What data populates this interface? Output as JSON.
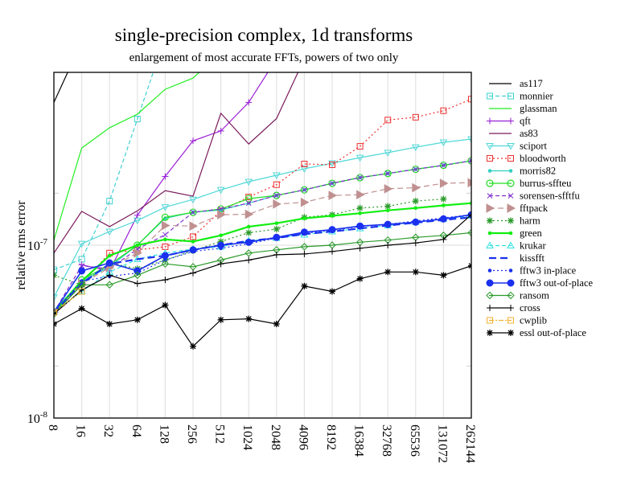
{
  "chart_data": {
    "type": "line",
    "title": "single-precision complex, 1d transforms",
    "subtitle": "enlargement of most accurate FFTs, powers of two only",
    "xlabel": "",
    "ylabel": "relative rms error",
    "xscale": "log2",
    "yscale": "log10",
    "ylim": [
      1e-08,
      1e-06
    ],
    "y_tick_labels": [
      {
        "base": "10",
        "exp": "-7",
        "value": 1e-07
      },
      {
        "base": "10",
        "exp": "-8",
        "value": 1e-08
      }
    ],
    "grid": true,
    "legend_position": "right",
    "categories": [
      "8",
      "16",
      "32",
      "64",
      "128",
      "256",
      "512",
      "1024",
      "2048",
      "4096",
      "8192",
      "16384",
      "32768",
      "65536",
      "131072",
      "262144"
    ],
    "series": [
      {
        "name": "as117",
        "color": "#000000",
        "dash": "",
        "marker": "none",
        "values": [
          6.7e-07,
          1.5e-06,
          null,
          null,
          null,
          null,
          null,
          null,
          null,
          null,
          null,
          null,
          null,
          null,
          null,
          null
        ]
      },
      {
        "name": "monnier",
        "color": "#40d0d0",
        "dash": "5,3",
        "marker": "square",
        "values": [
          7.2e-08,
          8.3e-08,
          1.8e-07,
          5.37e-07,
          1.6e-06,
          null,
          null,
          null,
          null,
          null,
          null,
          null,
          null,
          null,
          null,
          null
        ]
      },
      {
        "name": "glassman",
        "color": "#22ee22",
        "dash": "",
        "marker": "none",
        "values": [
          1.07e-07,
          3.65e-07,
          4.78e-07,
          5.73e-07,
          7.98e-07,
          9.27e-07,
          1.3e-06,
          null,
          null,
          null,
          null,
          null,
          null,
          null,
          null,
          null
        ]
      },
      {
        "name": "qft",
        "color": "#9a1fd6",
        "dash": "",
        "marker": "plus",
        "values": [
          null,
          7.7e-08,
          7.1e-08,
          1.49e-07,
          2.5e-07,
          4.02e-07,
          4.58e-07,
          6.7e-07,
          1.2e-06,
          null,
          null,
          null,
          null,
          null,
          null,
          null
        ]
      },
      {
        "name": "as83",
        "color": "#7a1a5a",
        "dash": "",
        "marker": "none",
        "values": [
          9e-08,
          1.57e-07,
          1.28e-07,
          1.58e-07,
          2.07e-07,
          1.92e-07,
          5.8e-07,
          3.85e-07,
          5.4e-07,
          1.2e-06,
          null,
          null,
          null,
          null,
          null,
          null
        ]
      },
      {
        "name": "sciport",
        "color": "#50d8d8",
        "dash": "",
        "marker": "triangle-down",
        "values": [
          5e-08,
          1.02e-07,
          1.2e-07,
          1.39e-07,
          1.66e-07,
          1.84e-07,
          2.09e-07,
          2.33e-07,
          2.54e-07,
          2.77e-07,
          2.98e-07,
          3.21e-07,
          3.43e-07,
          3.69e-07,
          3.94e-07,
          4.11e-07
        ]
      },
      {
        "name": "bloodworth",
        "color": "#ee3030",
        "dash": "2,3",
        "marker": "square",
        "values": [
          4.1e-08,
          6e-08,
          9e-08,
          9.4e-08,
          9.8e-08,
          1.12e-07,
          1.58e-07,
          1.9e-07,
          2.24e-07,
          2.95e-07,
          2.92e-07,
          3.73e-07,
          5.3e-07,
          5.5e-07,
          6e-07,
          7e-07
        ]
      },
      {
        "name": "morris82",
        "color": "#30d0c0",
        "dash": "",
        "marker": "dot",
        "values": [
          4.2e-08,
          6.2e-08,
          7.5e-08,
          1e-07,
          1.43e-07,
          1.55e-07,
          1.6e-07,
          1.75e-07,
          1.94e-07,
          2.09e-07,
          2.28e-07,
          2.46e-07,
          2.6e-07,
          2.75e-07,
          2.9e-07,
          3.08e-07
        ]
      },
      {
        "name": "burrus-sffteu",
        "color": "#22dd22",
        "dash": "",
        "marker": "circle",
        "values": [
          4.1e-08,
          6.3e-08,
          7.7e-08,
          1e-07,
          1.45e-07,
          1.55e-07,
          1.62e-07,
          1.86e-07,
          1.94e-07,
          2.09e-07,
          2.28e-07,
          2.46e-07,
          2.6e-07,
          2.75e-07,
          2.9e-07,
          3.08e-07
        ]
      },
      {
        "name": "sorensen-sfftfu",
        "color": "#8030d0",
        "dash": "5,3",
        "marker": "x",
        "values": [
          4.1e-08,
          7.6e-08,
          7.3e-08,
          9.5e-08,
          1.15e-07,
          1.55e-07,
          1.62e-07,
          1.75e-07,
          1.94e-07,
          2.09e-07,
          2.28e-07,
          2.46e-07,
          2.6e-07,
          2.75e-07,
          2.9e-07,
          3.08e-07
        ]
      },
      {
        "name": "fftpack",
        "color": "#c09090",
        "dash": "7,4",
        "marker": "triangle-right",
        "values": [
          4.1e-08,
          6e-08,
          7.4e-08,
          9e-08,
          1.3e-07,
          1.29e-07,
          1.5e-07,
          1.51e-07,
          1.73e-07,
          1.77e-07,
          1.94e-07,
          1.96e-07,
          2.12e-07,
          2.15e-07,
          2.28e-07,
          2.3e-07
        ]
      },
      {
        "name": "harm",
        "color": "#2a9a2a",
        "dash": "2,3",
        "marker": "star",
        "values": [
          6.7e-08,
          5.9e-08,
          7.9e-08,
          7.3e-08,
          8.2e-08,
          9.3e-08,
          1.05e-07,
          1.18e-07,
          1.24e-07,
          1.45e-07,
          1.5e-07,
          1.64e-07,
          1.68e-07,
          1.8e-07,
          1.85e-07,
          null
        ]
      },
      {
        "name": "green",
        "color": "#11ee11",
        "dash": "",
        "marker": "dot",
        "values": [
          4.1e-08,
          6.2e-08,
          8.7e-08,
          1e-07,
          1.08e-07,
          1.05e-07,
          1.14e-07,
          1.28e-07,
          1.34e-07,
          1.43e-07,
          1.48e-07,
          1.53e-07,
          1.59e-07,
          1.64e-07,
          1.7e-07,
          1.75e-07
        ]
      },
      {
        "name": "krukar",
        "color": "#30e0e0",
        "dash": "5,3",
        "marker": "triangle-up",
        "values": [
          4.1e-08,
          5.4e-08,
          7e-08,
          8.3e-08,
          9e-08,
          9.5e-08,
          9.8e-08,
          1.06e-07,
          1.1e-07,
          1.15e-07,
          1.2e-07,
          1.25e-07,
          1.3e-07,
          1.36e-07,
          1.42e-07,
          1.48e-07
        ]
      },
      {
        "name": "kissfft",
        "color": "#1a30ee",
        "dash": "9,5",
        "marker": "none",
        "values": [
          4.1e-08,
          6e-08,
          7.8e-08,
          8.3e-08,
          8.7e-08,
          9.4e-08,
          1e-07,
          1.06e-07,
          1.1e-07,
          1.16e-07,
          1.2e-07,
          1.25e-07,
          1.3e-07,
          1.35e-07,
          1.4e-07,
          1.45e-07
        ]
      },
      {
        "name": "fftw3 in-place",
        "color": "#1a30ee",
        "dash": "2,3",
        "marker": "dot",
        "values": [
          4.1e-08,
          6.2e-08,
          6.6e-08,
          6.9e-08,
          8.2e-08,
          9.2e-08,
          9.6e-08,
          1.02e-07,
          1.1e-07,
          1.17e-07,
          1.22e-07,
          1.28e-07,
          1.32e-07,
          1.38e-07,
          1.44e-07,
          1.5e-07
        ]
      },
      {
        "name": "fftw3 out-of-place",
        "color": "#1a30ee",
        "dash": "",
        "marker": "bigdot",
        "values": [
          4.1e-08,
          7.1e-08,
          7.9e-08,
          7.1e-08,
          8.7e-08,
          9.4e-08,
          1e-07,
          1.04e-07,
          1.11e-07,
          1.19e-07,
          1.23e-07,
          1.29e-07,
          1.32e-07,
          1.36e-07,
          1.42e-07,
          1.5e-07
        ]
      },
      {
        "name": "ransom",
        "color": "#2a9a2a",
        "dash": "",
        "marker": "diamond",
        "values": [
          4e-08,
          5.9e-08,
          5.9e-08,
          6.7e-08,
          7.8e-08,
          7.5e-08,
          8.2e-08,
          9e-08,
          9.4e-08,
          9.8e-08,
          1e-07,
          1.04e-07,
          1.07e-07,
          1.11e-07,
          1.14e-07,
          1.18e-07
        ]
      },
      {
        "name": "cross",
        "color": "#000000",
        "dash": "",
        "marker": "plus",
        "values": [
          4e-08,
          5.5e-08,
          6.7e-08,
          6e-08,
          6.3e-08,
          6.9e-08,
          7.8e-08,
          8.2e-08,
          8.8e-08,
          8.9e-08,
          9.2e-08,
          9.6e-08,
          1e-07,
          1.03e-07,
          1.08e-07,
          1.5e-07
        ]
      },
      {
        "name": "cwplib",
        "color": "#f0b030",
        "dash": "6,2,2,2",
        "marker": "square",
        "values": [
          4.1e-08,
          5.4e-08,
          null,
          null,
          null,
          null,
          null,
          null,
          null,
          null,
          null,
          null,
          null,
          null,
          null,
          null
        ]
      },
      {
        "name": "essl out-of-place",
        "color": "#000000",
        "dash": "",
        "marker": "star",
        "values": [
          3.5e-08,
          4.3e-08,
          3.5e-08,
          3.7e-08,
          4.5e-08,
          2.6e-08,
          3.7e-08,
          3.75e-08,
          3.5e-08,
          5.8e-08,
          5.4e-08,
          6.4e-08,
          7e-08,
          7e-08,
          6.7e-08,
          7.6e-08
        ]
      }
    ]
  }
}
